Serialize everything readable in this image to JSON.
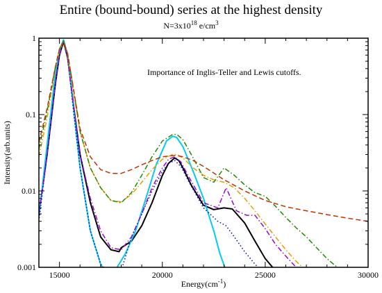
{
  "chart_data": {
    "type": "line",
    "title": "Entire (bound-bound) series at the highest density",
    "subtitle": {
      "prefix": "N=3x10",
      "exponent": "18",
      "unit": " e/cm",
      "unit_exponent": "3"
    },
    "xlabel": {
      "text": "Energy(cm",
      "exponent": "-1",
      "suffix": ")"
    },
    "ylabel": "Intensity(arb.units)",
    "annotation": "Importance of Inglis-Teller  and Lewis cutoffs.",
    "xlim": [
      14000,
      30000
    ],
    "ylim": [
      0.001,
      1
    ],
    "yscale": "log",
    "x_ticks": [
      15000,
      20000,
      25000,
      30000
    ],
    "x_tick_labels": [
      "15000",
      "20000",
      "25000",
      "30000"
    ],
    "y_ticks": [
      0.001,
      0.01,
      0.1,
      1
    ],
    "y_tick_labels": [
      "0.001",
      "0.01",
      "0.1",
      "1"
    ],
    "grid": false,
    "legend": "none",
    "series": [
      {
        "color": "#000000",
        "dash": "solid",
        "width": 2,
        "x": [
          14000,
          14400,
          14800,
          15000,
          15200,
          15400,
          15700,
          16000,
          16500,
          17000,
          17500,
          17900,
          18000,
          18500,
          19000,
          19500,
          20000,
          20300,
          20600,
          20800,
          21000,
          21400,
          22000,
          22500,
          23000,
          23400,
          24000,
          24500,
          25000,
          25500
        ],
        "y": [
          0.005,
          0.03,
          0.25,
          0.6,
          0.9,
          0.55,
          0.12,
          0.03,
          0.007,
          0.0025,
          0.0017,
          0.0016,
          0.0018,
          0.0022,
          0.0035,
          0.007,
          0.016,
          0.023,
          0.027,
          0.025,
          0.02,
          0.012,
          0.0065,
          0.0057,
          0.006,
          0.0058,
          0.0038,
          0.0022,
          0.0013,
          0.0009
        ]
      },
      {
        "color": "#00ccee",
        "dash": "solid",
        "width": 2,
        "x": [
          14000,
          14400,
          14800,
          15000,
          15200,
          15400,
          15700,
          16000,
          16500,
          17000,
          17300,
          17700,
          18200,
          18700,
          19200,
          19700,
          20200,
          20500,
          20700,
          21000,
          21500,
          22000,
          22500,
          22800,
          23100
        ],
        "y": [
          0.0045,
          0.04,
          0.35,
          0.7,
          0.95,
          0.6,
          0.11,
          0.02,
          0.003,
          0.0011,
          0.0008,
          0.0009,
          0.0015,
          0.003,
          0.008,
          0.022,
          0.045,
          0.052,
          0.05,
          0.038,
          0.018,
          0.008,
          0.003,
          0.0015,
          0.0009
        ]
      },
      {
        "color": "#0000cc",
        "dash": "dotted",
        "width": 1.5,
        "x": [
          14000,
          14400,
          14800,
          15000,
          15200,
          15400,
          15700,
          16000,
          16500,
          17000,
          17500,
          18000,
          18500,
          19000,
          19500,
          20000,
          20300,
          20600,
          20900,
          21300,
          22000,
          22700,
          23100,
          23500,
          24000,
          24500,
          25000
        ],
        "y": [
          0.004,
          0.03,
          0.25,
          0.6,
          0.92,
          0.55,
          0.1,
          0.02,
          0.003,
          0.0011,
          0.0008,
          0.0009,
          0.0025,
          0.005,
          0.01,
          0.018,
          0.023,
          0.025,
          0.021,
          0.013,
          0.006,
          0.004,
          0.0035,
          0.0025,
          0.0016,
          0.0011,
          0.0008
        ]
      },
      {
        "color": "#9900dd",
        "dash": "dashdot",
        "width": 1.5,
        "x": [
          14000,
          14400,
          14800,
          15000,
          15200,
          15400,
          15700,
          16000,
          16500,
          17000,
          17500,
          18000,
          18500,
          19000,
          19500,
          20000,
          20300,
          20600,
          20900,
          21300,
          22000,
          22700,
          23100,
          23600,
          24100,
          24500,
          25000,
          25500,
          26000,
          26500
        ],
        "y": [
          0.005,
          0.03,
          0.25,
          0.6,
          0.92,
          0.55,
          0.12,
          0.03,
          0.008,
          0.003,
          0.0018,
          0.0017,
          0.0025,
          0.005,
          0.011,
          0.02,
          0.026,
          0.028,
          0.024,
          0.015,
          0.007,
          0.006,
          0.011,
          0.0055,
          0.0048,
          0.0048,
          0.0032,
          0.002,
          0.0014,
          0.001
        ]
      },
      {
        "color": "#e0a000",
        "dash": "dashdot",
        "width": 1.5,
        "x": [
          14000,
          14400,
          14800,
          15000,
          15200,
          15400,
          15700,
          16000,
          16500,
          17000,
          17500,
          18000,
          18500,
          19000,
          19500,
          20000,
          20500,
          20700,
          21000,
          21500,
          22000,
          22500,
          23000,
          23500,
          24000,
          24500,
          25000,
          25500,
          26000,
          26500,
          27000
        ],
        "y": [
          0.028,
          0.09,
          0.4,
          0.7,
          0.9,
          0.6,
          0.18,
          0.06,
          0.02,
          0.011,
          0.0075,
          0.0072,
          0.009,
          0.013,
          0.019,
          0.026,
          0.03,
          0.03,
          0.027,
          0.02,
          0.016,
          0.014,
          0.013,
          0.011,
          0.008,
          0.0055,
          0.0037,
          0.0025,
          0.0017,
          0.0012,
          0.0009
        ]
      },
      {
        "color": "#228800",
        "dash": "dashdot",
        "width": 1.5,
        "x": [
          14000,
          14400,
          14800,
          15000,
          15200,
          15400,
          15700,
          16000,
          16500,
          17000,
          17500,
          18000,
          18500,
          19000,
          19500,
          20000,
          20500,
          20700,
          21000,
          21500,
          22000,
          22500,
          23000,
          23500,
          24000,
          24500,
          25000,
          25500,
          26000,
          26500,
          27000,
          27500,
          28000,
          28500,
          29000
        ],
        "y": [
          0.035,
          0.11,
          0.42,
          0.72,
          0.92,
          0.62,
          0.2,
          0.06,
          0.02,
          0.011,
          0.0075,
          0.007,
          0.0095,
          0.016,
          0.028,
          0.045,
          0.055,
          0.055,
          0.047,
          0.027,
          0.015,
          0.013,
          0.02,
          0.016,
          0.012,
          0.0095,
          0.0085,
          0.0063,
          0.0045,
          0.0033,
          0.0025,
          0.0018,
          0.0013,
          0.001,
          0.0007
        ]
      },
      {
        "color": "#bb3300",
        "dash": "dashed",
        "width": 1.5,
        "x": [
          14000,
          14400,
          14800,
          15000,
          15200,
          15400,
          15700,
          16000,
          16500,
          17000,
          17500,
          18000,
          18500,
          19000,
          19500,
          20000,
          20500,
          20700,
          21000,
          21500,
          22000,
          23000,
          24000,
          25000,
          26000,
          27000,
          28000,
          29000,
          30000
        ],
        "y": [
          0.043,
          0.12,
          0.42,
          0.72,
          0.9,
          0.62,
          0.2,
          0.065,
          0.028,
          0.019,
          0.017,
          0.017,
          0.019,
          0.022,
          0.025,
          0.028,
          0.029,
          0.029,
          0.028,
          0.025,
          0.021,
          0.014,
          0.01,
          0.0075,
          0.0062,
          0.0055,
          0.0049,
          0.0044,
          0.004
        ]
      }
    ]
  }
}
